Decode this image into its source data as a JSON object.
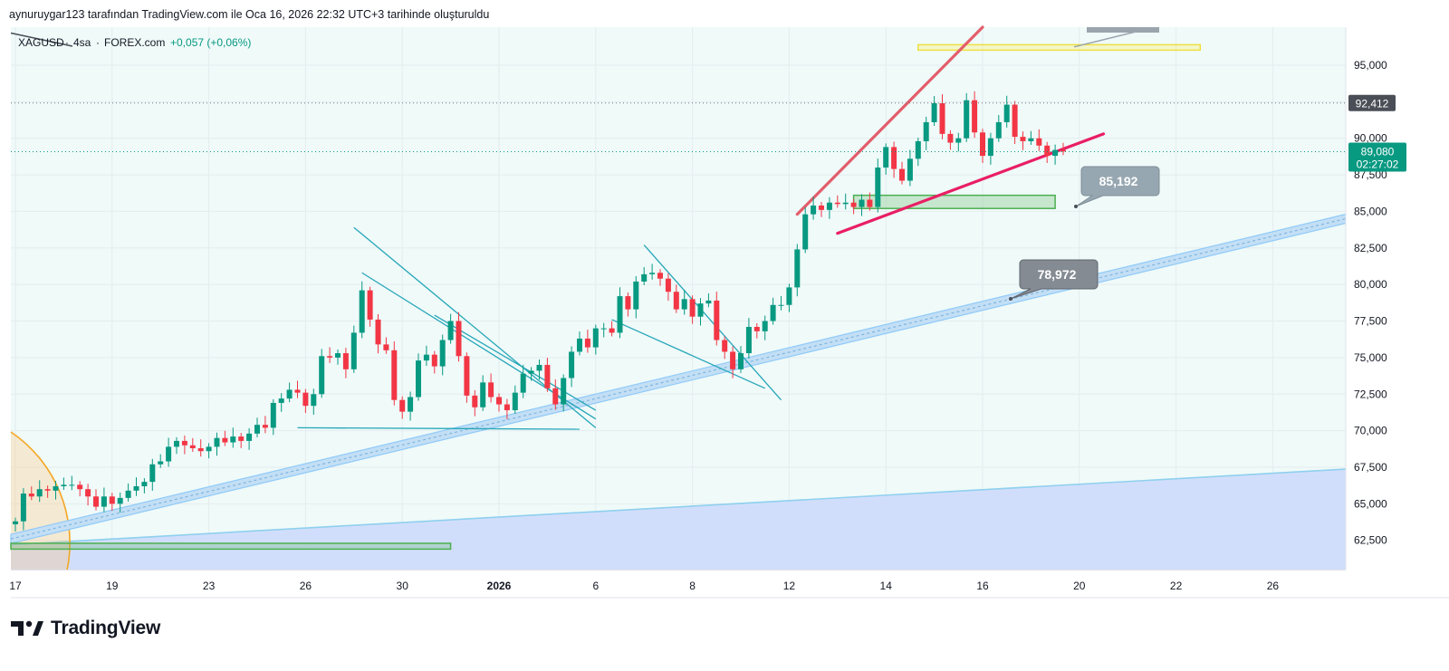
{
  "header": {
    "created_by": "aynuruygar123 tarafından TradingView.com ile Oca 16, 2026 22:32 UTC+3 tarihinde oluşturuldu"
  },
  "legend": {
    "symbol": "XAGUSD",
    "interval": "4sa",
    "source": "FOREX.com",
    "change": "+0,057 (+0,06%)"
  },
  "brand": {
    "name": "TradingView"
  },
  "colors": {
    "up": "#089981",
    "down": "#f23645",
    "bg_tint": "#effaf9",
    "channel": "#90caf9",
    "wedge_upper": "#e35d6a",
    "wedge_lower": "#e91e63",
    "pattern_lines": "#26a6b8",
    "price_label": "#089981",
    "alert_label": "#4a4e57"
  },
  "chart_data": {
    "type": "candlestick",
    "y_axis": {
      "ylim": [
        60500,
        97600
      ],
      "ticks": [
        "95,000",
        "92,500",
        "90,000",
        "87,500",
        "85,000",
        "82,500",
        "80,000",
        "77,500",
        "75,000",
        "72,500",
        "70,000",
        "67,500",
        "65,000",
        "62,500"
      ],
      "tick_values": [
        95000,
        92500,
        90000,
        87500,
        85000,
        82500,
        80000,
        77500,
        75000,
        72500,
        70000,
        67500,
        65000,
        62500
      ]
    },
    "x_axis": {
      "labels": [
        "17",
        "19",
        "23",
        "26",
        "30",
        "2026",
        "6",
        "8",
        "12",
        "14",
        "16",
        "20",
        "22",
        "26"
      ],
      "label_index": [
        0,
        12,
        24,
        36,
        48,
        60,
        72,
        84,
        96,
        108,
        120,
        132,
        144,
        156
      ],
      "bold_label": "2026"
    },
    "current_price": {
      "value": "89,080",
      "countdown": "02:27:02",
      "level": 89080
    },
    "high_marker": {
      "value": "92,412",
      "level": 92412
    },
    "callouts": [
      {
        "text": "85,192",
        "level": 85192
      },
      {
        "text": "78,972",
        "level": 78972
      }
    ],
    "candles_close": [
      63800,
      65700,
      65500,
      66000,
      65900,
      66200,
      66300,
      66300,
      66000,
      65500,
      64800,
      65500,
      65000,
      65400,
      65900,
      66200,
      66500,
      67700,
      67900,
      68900,
      69300,
      69000,
      68800,
      68600,
      68900,
      69500,
      69200,
      69600,
      69300,
      69800,
      70400,
      70200,
      71900,
      72200,
      72800,
      72600,
      71700,
      72500,
      75100,
      75000,
      75300,
      74200,
      76700,
      79600,
      77600,
      75900,
      75500,
      72100,
      71300,
      72300,
      74800,
      75200,
      74400,
      76200,
      77500,
      75100,
      72400,
      71600,
      73300,
      72300,
      71800,
      71400,
      72600,
      73900,
      74100,
      74500,
      72900,
      71800,
      73600,
      75400,
      76300,
      75700,
      77000,
      77000,
      76700,
      79200,
      78300,
      80200,
      80700,
      80800,
      80400,
      79500,
      78300,
      79000,
      77800,
      78700,
      78900,
      76200,
      75400,
      74200,
      75300,
      77100,
      76800,
      77500,
      78600,
      78600,
      79800,
      82400,
      84800,
      85400,
      85100,
      85600,
      85500,
      85600,
      85300,
      85800,
      85300,
      88000,
      89400,
      87900,
      87100,
      88600,
      89800,
      91100,
      92400,
      90300,
      89700,
      90000,
      92600,
      90400,
      88800,
      90000,
      91100,
      92300,
      90100,
      89800,
      90000,
      89500,
      88800,
      89200,
      89100
    ],
    "channel": {
      "start": [
        0,
        62600
      ],
      "end": [
        166,
        84500
      ]
    },
    "support_trend": {
      "start": [
        0,
        62200
      ],
      "end": [
        166,
        67400
      ]
    },
    "wedge": {
      "upper": [
        [
          97,
          84800
        ],
        [
          120,
          97600
        ]
      ],
      "lower": [
        [
          102,
          83500
        ],
        [
          135,
          90300
        ]
      ]
    },
    "zones": [
      {
        "name": "green-zone-upper",
        "x": [
          104,
          129
        ],
        "y": [
          85200,
          86100
        ]
      },
      {
        "name": "green-zone-lower",
        "x": [
          0,
          54
        ],
        "y": [
          61900,
          62300
        ]
      },
      {
        "name": "yellow-zone",
        "x": [
          112,
          147
        ],
        "y": [
          96200,
          96400
        ]
      }
    ],
    "patterns": [
      [
        [
          42,
          83900
        ],
        [
          72,
          70200
        ]
      ],
      [
        [
          43,
          80800
        ],
        [
          72,
          70800
        ]
      ],
      [
        [
          35,
          70200
        ],
        [
          70,
          70100
        ]
      ],
      [
        [
          52,
          77900
        ],
        [
          72,
          71400
        ]
      ],
      [
        [
          78,
          82700
        ],
        [
          95,
          72100
        ]
      ],
      [
        [
          74,
          77600
        ],
        [
          93,
          72900
        ]
      ]
    ]
  }
}
